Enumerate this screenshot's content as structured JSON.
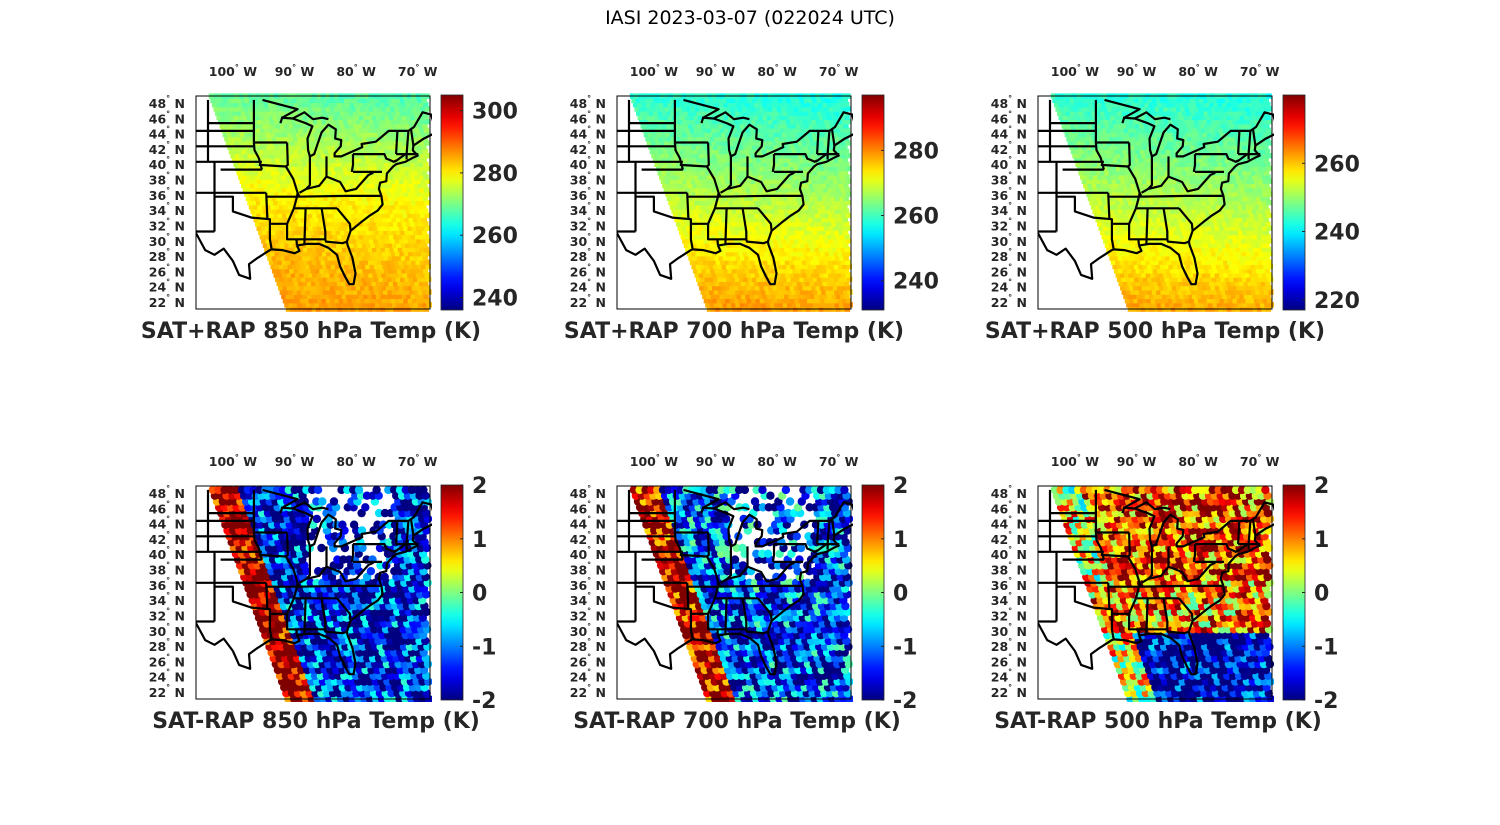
{
  "figure": {
    "title": "IASI 2023-03-07 (022024 UTC)"
  },
  "chart_data": [
    {
      "type": "heatmap",
      "title": "SAT+RAP 850 hPa Temp (K)",
      "map_region": "Central/Eastern United States",
      "x_ticks": [
        "100° W",
        "90° W",
        "80° W",
        "70° W"
      ],
      "x_tick_values": [
        -100,
        -90,
        -80,
        -70
      ],
      "y_ticks": [
        "48° N",
        "46° N",
        "44° N",
        "42° N",
        "40° N",
        "38° N",
        "36° N",
        "34° N",
        "32° N",
        "30° N",
        "28° N",
        "26° N",
        "24° N",
        "22° N"
      ],
      "y_tick_values": [
        48,
        46,
        44,
        42,
        40,
        38,
        36,
        34,
        32,
        30,
        28,
        26,
        24,
        22
      ],
      "xlim": [
        -106,
        -68
      ],
      "ylim": [
        22,
        49.5
      ],
      "colormap": "jet",
      "colorbar": {
        "ticks": [
          300,
          280,
          260,
          240
        ],
        "clim": [
          236,
          305
        ]
      },
      "field_description": "Cool (~265-270 K) in north/Great Lakes, warm (~280-290 K) in southeast; swath bounded on west by diagonal edge",
      "field": {
        "north": 268,
        "central": 280,
        "south": 286
      }
    },
    {
      "type": "heatmap",
      "title": "SAT+RAP 700 hPa Temp (K)",
      "map_region": "Central/Eastern United States",
      "x_ticks": [
        "100° W",
        "90° W",
        "80° W",
        "70° W"
      ],
      "x_tick_values": [
        -100,
        -90,
        -80,
        -70
      ],
      "y_ticks": [
        "48° N",
        "46° N",
        "44° N",
        "42° N",
        "40° N",
        "38° N",
        "36° N",
        "34° N",
        "32° N",
        "30° N",
        "28° N",
        "26° N",
        "24° N",
        "22° N"
      ],
      "y_tick_values": [
        48,
        46,
        44,
        42,
        40,
        38,
        36,
        34,
        32,
        30,
        28,
        26,
        24,
        22
      ],
      "xlim": [
        -106,
        -68
      ],
      "ylim": [
        22,
        49.5
      ],
      "colormap": "jet",
      "colorbar": {
        "ticks": [
          280,
          260,
          240
        ],
        "clim": [
          231,
          297
        ]
      },
      "field_description": "Cold (~255-262 K) north, warm (~275-280 K) south",
      "field": {
        "north": 258,
        "central": 268,
        "south": 279
      }
    },
    {
      "type": "heatmap",
      "title": "SAT+RAP 500 hPa Temp (K)",
      "map_region": "Central/Eastern United States",
      "x_ticks": [
        "100° W",
        "90° W",
        "80° W",
        "70° W"
      ],
      "x_tick_values": [
        -100,
        -90,
        -80,
        -70
      ],
      "y_ticks": [
        "48° N",
        "46° N",
        "44° N",
        "42° N",
        "40° N",
        "38° N",
        "36° N",
        "34° N",
        "32° N",
        "30° N",
        "28° N",
        "26° N",
        "24° N",
        "22° N"
      ],
      "y_tick_values": [
        48,
        46,
        44,
        42,
        40,
        38,
        36,
        34,
        32,
        30,
        28,
        26,
        24,
        22
      ],
      "xlim": [
        -106,
        -68
      ],
      "ylim": [
        22,
        49.5
      ],
      "colormap": "jet",
      "colorbar": {
        "ticks": [
          260,
          240,
          220
        ],
        "clim": [
          217,
          280
        ]
      },
      "field_description": "Cold (~240-245 K) north, ~260 K south",
      "field": {
        "north": 243,
        "central": 252,
        "south": 262
      }
    },
    {
      "type": "scatter",
      "title": "SAT-RAP 850 hPa Temp (K)",
      "map_region": "Central/Eastern United States",
      "x_ticks": [
        "100° W",
        "90° W",
        "80° W",
        "70° W"
      ],
      "x_tick_values": [
        -100,
        -90,
        -80,
        -70
      ],
      "y_ticks": [
        "48° N",
        "46° N",
        "44° N",
        "42° N",
        "40° N",
        "38° N",
        "36° N",
        "34° N",
        "32° N",
        "30° N",
        "28° N",
        "26° N",
        "24° N",
        "22° N"
      ],
      "y_tick_values": [
        48,
        46,
        44,
        42,
        40,
        38,
        36,
        34,
        32,
        30,
        28,
        26,
        24,
        22
      ],
      "xlim": [
        -106,
        -68
      ],
      "ylim": [
        22,
        49.5
      ],
      "colormap": "jet",
      "colorbar": {
        "ticks": [
          2,
          1,
          0,
          -1,
          -2
        ],
        "clim": [
          -2,
          2
        ]
      },
      "field_description": "Positive (+2 K) along western Plains edge; mostly negative (-1 to -2 K) over southeast and Great Lakes; sparse dots in north",
      "field": {
        "west_edge": 2,
        "north": -1.5,
        "south": -1.5
      }
    },
    {
      "type": "scatter",
      "title": "SAT-RAP 700 hPa Temp (K)",
      "map_region": "Central/Eastern United States",
      "x_ticks": [
        "100° W",
        "90° W",
        "80° W",
        "70° W"
      ],
      "x_tick_values": [
        -100,
        -90,
        -80,
        -70
      ],
      "y_ticks": [
        "48° N",
        "46° N",
        "44° N",
        "42° N",
        "40° N",
        "38° N",
        "36° N",
        "34° N",
        "32° N",
        "30° N",
        "28° N",
        "26° N",
        "24° N",
        "22° N"
      ],
      "y_tick_values": [
        48,
        46,
        44,
        42,
        40,
        38,
        36,
        34,
        32,
        30,
        28,
        26,
        24,
        22
      ],
      "xlim": [
        -106,
        -68
      ],
      "ylim": [
        22,
        49.5
      ],
      "colormap": "jet",
      "colorbar": {
        "ticks": [
          2,
          1,
          0,
          -1,
          -2
        ],
        "clim": [
          -2,
          2
        ]
      },
      "field_description": "Positive along western edge and in far south/east ocean; negative (-1.5 K) over southeast land",
      "field": {
        "west_edge": 1.8,
        "north": -1.2,
        "south": -1.3
      }
    },
    {
      "type": "scatter",
      "title": "SAT-RAP 500 hPa Temp (K)",
      "map_region": "Central/Eastern United States",
      "x_ticks": [
        "100° W",
        "90° W",
        "80° W",
        "70° W"
      ],
      "x_tick_values": [
        -100,
        -90,
        -80,
        -70
      ],
      "y_ticks": [
        "48° N",
        "46° N",
        "44° N",
        "42° N",
        "40° N",
        "38° N",
        "36° N",
        "34° N",
        "32° N",
        "30° N",
        "28° N",
        "26° N",
        "24° N",
        "22° N"
      ],
      "y_tick_values": [
        48,
        46,
        44,
        42,
        40,
        38,
        36,
        34,
        32,
        30,
        28,
        26,
        24,
        22
      ],
      "xlim": [
        -106,
        -68
      ],
      "ylim": [
        22,
        49.5
      ],
      "colormap": "jet",
      "colorbar": {
        "ticks": [
          2,
          1,
          0,
          -1,
          -2
        ],
        "clim": [
          -2,
          2
        ]
      },
      "field_description": "Positive (+1 to +2 K) over north and central; strongly negative (-2 K) over Gulf/Atlantic south",
      "field": {
        "west_edge": 0.5,
        "north": 1.3,
        "south": -1.8
      }
    }
  ]
}
